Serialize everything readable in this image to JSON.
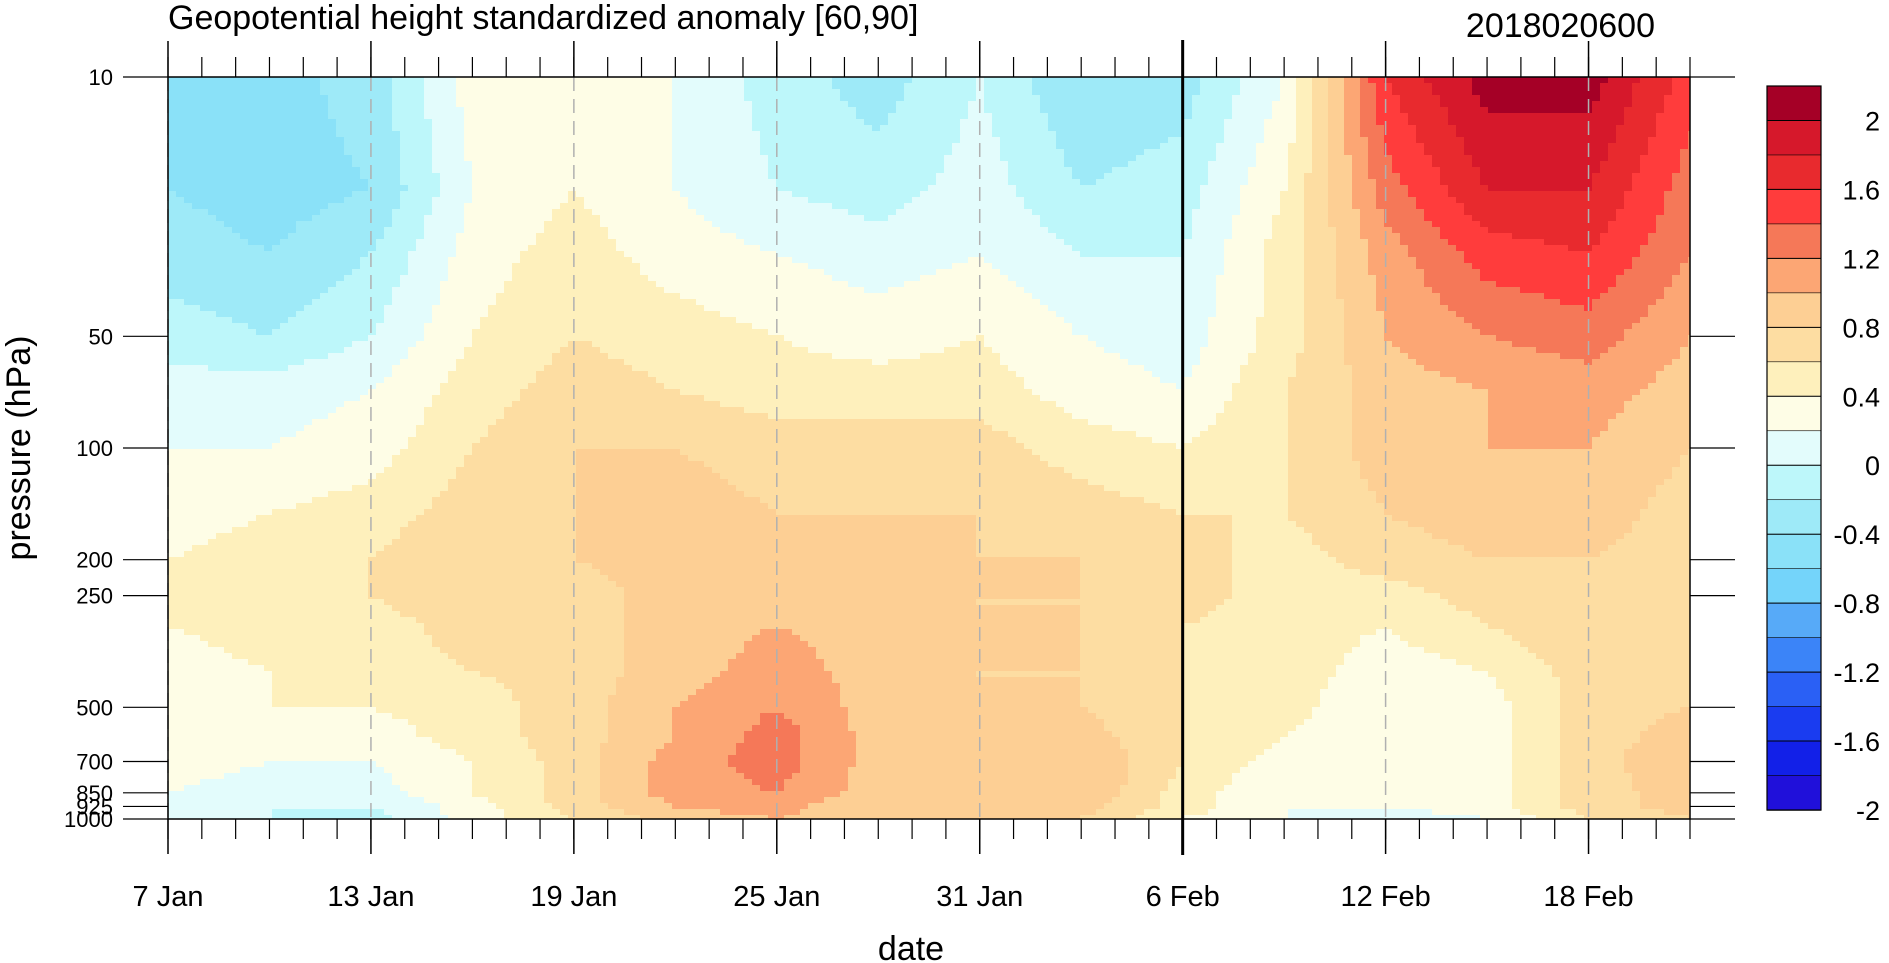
{
  "chart_data": {
    "type": "heatmap",
    "title": "Geopotential height standardized anomaly [60,90]",
    "timestamp": "2018020600",
    "xlabel": "date",
    "ylabel": "pressure (hPa)",
    "x_ticks": [
      "7 Jan",
      "13 Jan",
      "19 Jan",
      "25 Jan",
      "31 Jan",
      "6 Feb",
      "12 Feb",
      "18 Feb"
    ],
    "x_tick_days": [
      0,
      6,
      12,
      18,
      24,
      30,
      36,
      42
    ],
    "x_range_days": [
      0,
      45
    ],
    "y_ticks": [
      "10",
      "50",
      "100",
      "200",
      "250",
      "500",
      "700",
      "850",
      "925",
      "1000"
    ],
    "y_tick_hpa": [
      10,
      50,
      100,
      200,
      250,
      500,
      700,
      850,
      925,
      1000
    ],
    "y_scale": "log",
    "y_reversed": true,
    "current_date_marker_day": 30,
    "colorbar_labels": [
      "2",
      "1.6",
      "1.2",
      "0.8",
      "0.4",
      "0",
      "-0.4",
      "-0.8",
      "-1.2",
      "-1.6",
      "-2"
    ],
    "colorbar_colors": [
      "#A50026",
      "#D6182B",
      "#E82A2E",
      "#FF3C3C",
      "#F57858",
      "#FCA674",
      "#FDCF94",
      "#FDDDA2",
      "#FEF0BC",
      "#FEFDE6",
      "#E3FCFC",
      "#BDF7FA",
      "#9EEAF8",
      "#8AE1F8",
      "#74D4FA",
      "#57AAF8",
      "#3B84F8",
      "#2A60F5",
      "#1A3CF0",
      "#1220E8",
      "#2010DA"
    ],
    "pressure_levels": [
      10,
      20,
      30,
      50,
      70,
      100,
      150,
      200,
      250,
      300,
      400,
      500,
      600,
      700,
      850,
      925,
      1000
    ],
    "days": [
      0,
      3,
      6,
      9,
      12,
      15,
      18,
      21,
      24,
      27,
      30,
      33,
      36,
      39,
      42,
      45
    ],
    "values": [
      [
        -0.6,
        -0.7,
        -0.5,
        0.1,
        0.2,
        0.0,
        -0.3,
        -0.5,
        -0.2,
        -0.6,
        -0.5,
        0.0,
        1.4,
        1.9,
        1.9,
        1.3
      ],
      [
        -0.6,
        -0.7,
        -0.6,
        0.0,
        0.2,
        0.0,
        -0.2,
        -0.3,
        -0.1,
        -0.4,
        -0.3,
        0.2,
        1.1,
        1.6,
        1.6,
        1.1
      ],
      [
        -0.5,
        -0.6,
        -0.4,
        0.1,
        0.3,
        0.1,
        0.0,
        -0.1,
        0.0,
        -0.2,
        -0.2,
        0.3,
        0.9,
        1.3,
        1.4,
        1.0
      ],
      [
        -0.3,
        -0.4,
        -0.2,
        0.2,
        0.4,
        0.3,
        0.2,
        0.1,
        0.2,
        0.0,
        -0.1,
        0.3,
        0.8,
        1.0,
        1.1,
        0.8
      ],
      [
        -0.1,
        -0.1,
        0.0,
        0.3,
        0.5,
        0.4,
        0.3,
        0.3,
        0.3,
        0.1,
        0.0,
        0.4,
        0.7,
        0.8,
        0.9,
        0.7
      ],
      [
        0.0,
        0.0,
        0.1,
        0.4,
        0.6,
        0.6,
        0.5,
        0.5,
        0.5,
        0.3,
        0.2,
        0.4,
        0.7,
        0.8,
        0.8,
        0.6
      ],
      [
        0.1,
        0.2,
        0.3,
        0.5,
        0.6,
        0.7,
        0.6,
        0.6,
        0.6,
        0.5,
        0.4,
        0.4,
        0.6,
        0.7,
        0.7,
        0.5
      ],
      [
        0.2,
        0.3,
        0.4,
        0.6,
        0.6,
        0.7,
        0.7,
        0.7,
        0.6,
        0.6,
        0.5,
        0.3,
        0.5,
        0.6,
        0.6,
        0.5
      ],
      [
        0.2,
        0.3,
        0.4,
        0.6,
        0.5,
        0.7,
        0.8,
        0.7,
        0.6,
        0.6,
        0.5,
        0.3,
        0.3,
        0.5,
        0.6,
        0.5
      ],
      [
        0.2,
        0.3,
        0.3,
        0.5,
        0.5,
        0.7,
        0.8,
        0.7,
        0.6,
        0.6,
        0.4,
        0.3,
        0.2,
        0.4,
        0.6,
        0.5
      ],
      [
        0.1,
        0.2,
        0.3,
        0.4,
        0.5,
        0.7,
        0.9,
        0.7,
        0.6,
        0.6,
        0.4,
        0.3,
        0.1,
        0.2,
        0.5,
        0.5
      ],
      [
        0.1,
        0.2,
        0.2,
        0.3,
        0.5,
        0.8,
        1.0,
        0.7,
        0.6,
        0.6,
        0.4,
        0.3,
        0.0,
        0.1,
        0.5,
        0.6
      ],
      [
        0.1,
        0.1,
        0.1,
        0.3,
        0.5,
        0.8,
        1.1,
        0.7,
        0.6,
        0.7,
        0.4,
        0.2,
        0.0,
        0.1,
        0.5,
        0.7
      ],
      [
        0.1,
        0.0,
        0.0,
        0.2,
        0.5,
        0.9,
        1.1,
        0.7,
        0.6,
        0.8,
        0.4,
        0.1,
        0.0,
        0.1,
        0.5,
        0.8
      ],
      [
        0.0,
        -0.1,
        -0.1,
        0.2,
        0.5,
        0.9,
        1.0,
        0.7,
        0.6,
        0.8,
        0.3,
        0.0,
        0.0,
        0.1,
        0.5,
        0.7
      ],
      [
        0.0,
        -0.2,
        -0.2,
        0.1,
        0.5,
        0.8,
        0.9,
        0.6,
        0.6,
        0.7,
        0.3,
        0.0,
        0.0,
        0.1,
        0.5,
        0.7
      ],
      [
        0.0,
        -0.2,
        -0.3,
        0.1,
        0.4,
        0.7,
        0.8,
        0.6,
        0.6,
        0.6,
        0.2,
        0.0,
        -0.1,
        0.0,
        0.4,
        0.6
      ]
    ]
  }
}
